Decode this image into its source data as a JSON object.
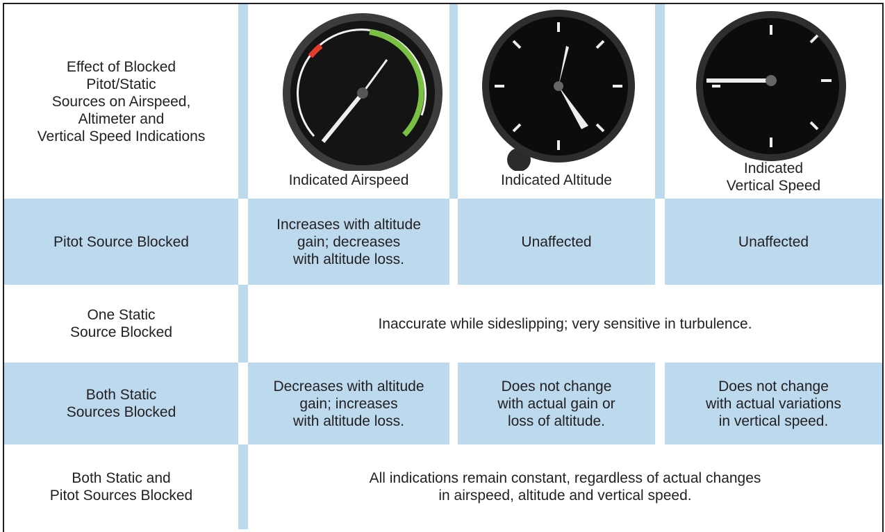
{
  "table": {
    "title": "Effect of Blocked\nPitot/Static\nSources on Airspeed,\nAltimeter and\nVertical Speed Indications",
    "columns": [
      "Indicated Airspeed",
      "Indicated Altitude",
      "Indicated\nVertical Speed"
    ],
    "rows": [
      {
        "label": "Pitot Source Blocked",
        "cells": [
          "Increases with altitude\ngain; decreases\nwith altitude loss.",
          "Unaffected",
          "Unaffected"
        ]
      },
      {
        "label": "One Static\nSource Blocked",
        "cells": [
          "Inaccurate while sideslipping; very sensitive in turbulence."
        ]
      },
      {
        "label": "Both Static\nSources Blocked",
        "cells": [
          "Decreases with altitude\ngain; increases\nwith altitude loss.",
          "Does not change\nwith actual gain or\nloss of altitude.",
          "Does not change\nwith actual variations\nin vertical speed."
        ]
      },
      {
        "label": "Both Static and\nPitot Sources Blocked",
        "cells": [
          "All indications remain constant, regardless of actual changes\nin airspeed, altitude and vertical speed."
        ]
      }
    ]
  }
}
